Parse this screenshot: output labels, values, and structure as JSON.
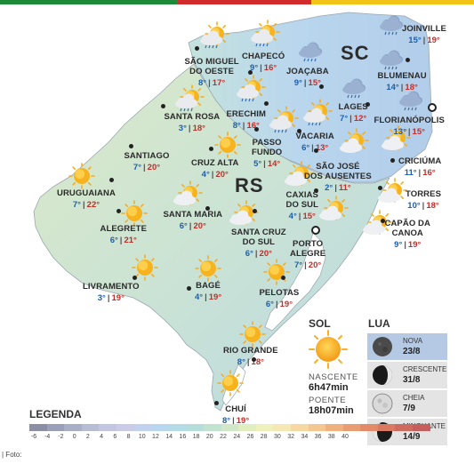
{
  "states": {
    "rs": "RS",
    "sc": "SC"
  },
  "cities": [
    {
      "id": "joinville",
      "name": "JOINVILLE",
      "min": "15°",
      "max": "19°"
    },
    {
      "id": "sao-miguel",
      "name": "SÃO MIGUEL\nDO OESTE",
      "min": "8°",
      "max": "17°"
    },
    {
      "id": "chapeco",
      "name": "CHAPECÓ",
      "min": "9°",
      "max": "16°"
    },
    {
      "id": "joacaba",
      "name": "JOAÇABA",
      "min": "9°",
      "max": "15°"
    },
    {
      "id": "blumenau",
      "name": "BLUMENAU",
      "min": "14°",
      "max": "18°"
    },
    {
      "id": "santa-rosa",
      "name": "SANTA ROSA",
      "min": "3°",
      "max": "18°"
    },
    {
      "id": "erechim",
      "name": "ERECHIM",
      "min": "8°",
      "max": "16°"
    },
    {
      "id": "lages",
      "name": "LAGES",
      "min": "7°",
      "max": "12°"
    },
    {
      "id": "florianopolis",
      "name": "FLORIANÓPOLIS",
      "min": "13°",
      "max": "15°"
    },
    {
      "id": "passo-fundo",
      "name": "PASSO\nFUNDO",
      "min": "5°",
      "max": "14°"
    },
    {
      "id": "vacaria",
      "name": "VACARIA",
      "min": "6°",
      "max": "13°"
    },
    {
      "id": "santiago",
      "name": "SANTIAGO",
      "min": "7°",
      "max": "20°"
    },
    {
      "id": "cruz-alta",
      "name": "CRUZ ALTA",
      "min": "4°",
      "max": "20°"
    },
    {
      "id": "sao-jose",
      "name": "SÃO JOSÉ\nDOS AUSENTES",
      "min": "2°",
      "max": "11°"
    },
    {
      "id": "criciuma",
      "name": "CRICIÚMA",
      "min": "11°",
      "max": "16°"
    },
    {
      "id": "uruguaiana",
      "name": "URUGUAIANA",
      "min": "7°",
      "max": "22°"
    },
    {
      "id": "caxias",
      "name": "CAXIAS\nDO SUL",
      "min": "4°",
      "max": "15°"
    },
    {
      "id": "torres",
      "name": "TORRES",
      "min": "10°",
      "max": "18°"
    },
    {
      "id": "santa-maria",
      "name": "SANTA MARIA",
      "min": "6°",
      "max": "20°"
    },
    {
      "id": "alegrete",
      "name": "ALEGRETE",
      "min": "6°",
      "max": "21°"
    },
    {
      "id": "santa-cruz",
      "name": "SANTA CRUZ\nDO SUL",
      "min": "6°",
      "max": "20°"
    },
    {
      "id": "capao",
      "name": "CAPÃO DA\nCANOA",
      "min": "9°",
      "max": "19°"
    },
    {
      "id": "porto-alegre",
      "name": "PORTO\nALEGRE",
      "min": "7°",
      "max": "20°"
    },
    {
      "id": "livramento",
      "name": "LIVRAMENTO",
      "min": "3°",
      "max": "19°"
    },
    {
      "id": "bage",
      "name": "BAGÉ",
      "min": "4°",
      "max": "19°"
    },
    {
      "id": "pelotas",
      "name": "PELOTAS",
      "min": "6°",
      "max": "19°"
    },
    {
      "id": "rio-grande",
      "name": "RIO GRANDE",
      "min": "8°",
      "max": "18°"
    },
    {
      "id": "chui",
      "name": "CHUÍ",
      "min": "8°",
      "max": "19°"
    }
  ],
  "sol": {
    "title": "SOL",
    "nascente_label": "NASCENTE",
    "nascente_time": "6h47min",
    "poente_label": "POENTE",
    "poente_time": "18h07min"
  },
  "lua": {
    "title": "LUA",
    "phases": [
      {
        "name": "NOVA",
        "date": "23/8",
        "active": true,
        "icon": "new-moon-icon"
      },
      {
        "name": "CRESCENTE",
        "date": "31/8",
        "active": false,
        "icon": "first-quarter-icon"
      },
      {
        "name": "CHEIA",
        "date": "7/9",
        "active": false,
        "icon": "full-moon-icon"
      },
      {
        "name": "MINGUANTE",
        "date": "14/9",
        "active": false,
        "icon": "last-quarter-icon"
      }
    ]
  },
  "legend": {
    "title": "LEGENDA",
    "labels": [
      "-6",
      "-4",
      "-2",
      "0",
      "2",
      "4",
      "6",
      "8",
      "10",
      "12",
      "14",
      "16",
      "18",
      "20",
      "22",
      "24",
      "26",
      "28",
      "30",
      "32",
      "34",
      "36",
      "38",
      "40"
    ],
    "colors": [
      "#8a8fa6",
      "#9aa0b9",
      "#a9afc7",
      "#b7bdd4",
      "#c3c6e0",
      "#cacbe6",
      "#c2d1ee",
      "#b8d6f0",
      "#b4dbe6",
      "#b6ddda",
      "#c1e2cf",
      "#d1e8c8",
      "#e1eec2",
      "#eef1bd",
      "#f6e8b4",
      "#f7d8a3",
      "#f4c690",
      "#efb27f",
      "#e89d72",
      "#e28a69",
      "#d97962",
      "#cf6a5e",
      "#c55e5c"
    ]
  },
  "footer": {
    "foto": "| Foto:"
  },
  "topbar_colors": [
    "#1d8a3a",
    "#d22b2b",
    "#f2c418"
  ]
}
